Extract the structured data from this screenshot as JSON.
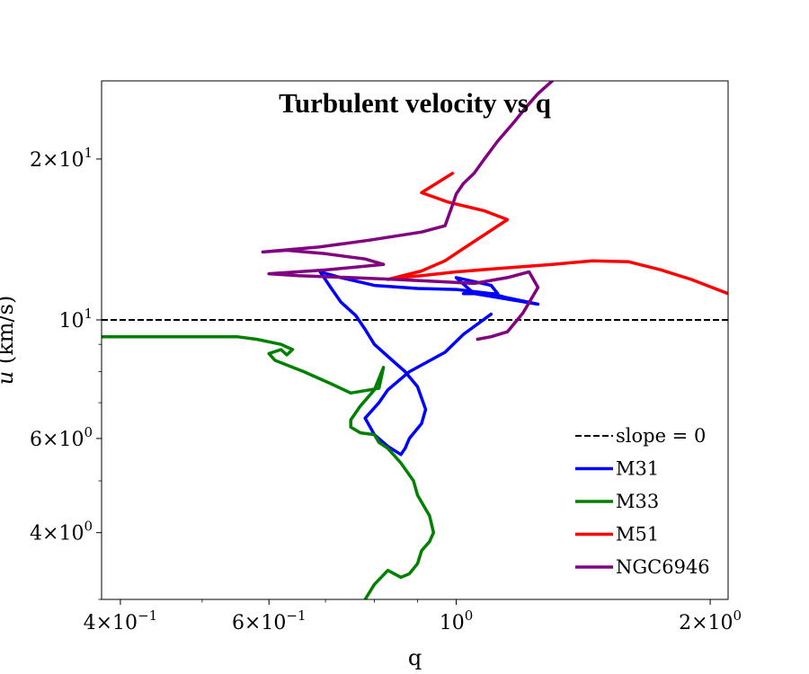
{
  "chart_data": {
    "type": "line",
    "title": "Turbulent velocity vs q",
    "xlabel": "q",
    "ylabel": "u (km/s)",
    "xscale": "log",
    "yscale": "log",
    "xlim": [
      0.38,
      2.1
    ],
    "ylim": [
      3.0,
      28.0
    ],
    "grid": false,
    "legend_position": "lower right",
    "x_ticks": [
      {
        "value": 0.4,
        "mant": "4",
        "exp": "−1"
      },
      {
        "value": 0.6,
        "mant": "6",
        "exp": "−1"
      },
      {
        "value": 1.0,
        "mant": "10",
        "exp": "0"
      },
      {
        "value": 2.0,
        "mant": "2",
        "exp": "0"
      }
    ],
    "y_ticks": [
      {
        "value": 4,
        "mant": "4",
        "exp": "0"
      },
      {
        "value": 6,
        "mant": "6",
        "exp": "0"
      },
      {
        "value": 10,
        "mant": "10",
        "exp": "1"
      },
      {
        "value": 20,
        "mant": "2",
        "exp": "1"
      }
    ],
    "reference_lines": [
      {
        "name": "slope = 0",
        "y": 10,
        "color": "#000000",
        "style": "dashed"
      }
    ],
    "series": [
      {
        "name": "M31",
        "color": "#0000ff",
        "points": [
          [
            1.1,
            10.25
          ],
          [
            1.02,
            9.4
          ],
          [
            0.97,
            8.7
          ],
          [
            0.88,
            8.0
          ],
          [
            0.83,
            7.4
          ],
          [
            0.81,
            7.0
          ],
          [
            0.78,
            6.55
          ],
          [
            0.8,
            6.1
          ],
          [
            0.83,
            5.8
          ],
          [
            0.86,
            5.6
          ],
          [
            0.87,
            5.75
          ],
          [
            0.88,
            6.0
          ],
          [
            0.91,
            6.4
          ],
          [
            0.92,
            6.8
          ],
          [
            0.9,
            7.5
          ],
          [
            0.87,
            8.0
          ],
          [
            0.84,
            8.4
          ],
          [
            0.8,
            9.0
          ],
          [
            0.78,
            9.6
          ],
          [
            0.76,
            10.2
          ],
          [
            0.73,
            10.8
          ],
          [
            0.71,
            11.5
          ],
          [
            0.69,
            12.3
          ],
          [
            0.73,
            12.0
          ],
          [
            0.8,
            11.6
          ],
          [
            0.9,
            11.45
          ],
          [
            1.0,
            11.4
          ],
          [
            1.1,
            11.2
          ],
          [
            1.15,
            11.0
          ],
          [
            1.25,
            10.7
          ],
          [
            1.05,
            11.2
          ],
          [
            1.0,
            12.0
          ],
          [
            1.1,
            11.6
          ],
          [
            1.12,
            11.2
          ],
          [
            1.02,
            11.2
          ]
        ]
      },
      {
        "name": "M33",
        "color": "#008000",
        "points": [
          [
            0.38,
            9.3
          ],
          [
            0.45,
            9.3
          ],
          [
            0.55,
            9.3
          ],
          [
            0.58,
            9.2
          ],
          [
            0.62,
            9.0
          ],
          [
            0.64,
            8.8
          ],
          [
            0.63,
            8.6
          ],
          [
            0.62,
            8.8
          ],
          [
            0.6,
            8.65
          ],
          [
            0.61,
            8.4
          ],
          [
            0.66,
            8.0
          ],
          [
            0.71,
            7.6
          ],
          [
            0.75,
            7.3
          ],
          [
            0.79,
            7.4
          ],
          [
            0.81,
            7.45
          ],
          [
            0.82,
            8.15
          ],
          [
            0.8,
            7.4
          ],
          [
            0.77,
            6.9
          ],
          [
            0.75,
            6.5
          ],
          [
            0.75,
            6.3
          ],
          [
            0.77,
            6.15
          ],
          [
            0.8,
            6.1
          ],
          [
            0.81,
            5.9
          ],
          [
            0.83,
            5.75
          ],
          [
            0.86,
            5.4
          ],
          [
            0.89,
            5.0
          ],
          [
            0.9,
            4.7
          ],
          [
            0.93,
            4.3
          ],
          [
            0.94,
            4.0
          ],
          [
            0.93,
            3.85
          ],
          [
            0.91,
            3.7
          ],
          [
            0.9,
            3.5
          ],
          [
            0.88,
            3.35
          ],
          [
            0.86,
            3.3
          ],
          [
            0.83,
            3.4
          ],
          [
            0.8,
            3.2
          ],
          [
            0.78,
            3.0
          ]
        ]
      },
      {
        "name": "M51",
        "color": "#ff0000",
        "points": [
          [
            0.99,
            18.8
          ],
          [
            0.91,
            17.3
          ],
          [
            0.98,
            16.6
          ],
          [
            1.08,
            16.0
          ],
          [
            1.15,
            15.4
          ],
          [
            1.02,
            13.6
          ],
          [
            0.97,
            12.9
          ],
          [
            0.91,
            12.35
          ],
          [
            0.83,
            11.9
          ],
          [
            0.86,
            12.0
          ],
          [
            0.91,
            12.1
          ],
          [
            1.0,
            12.3
          ],
          [
            1.1,
            12.45
          ],
          [
            1.3,
            12.7
          ],
          [
            1.45,
            12.9
          ],
          [
            1.6,
            12.85
          ],
          [
            1.75,
            12.4
          ],
          [
            1.9,
            11.9
          ],
          [
            2.1,
            11.2
          ]
        ]
      },
      {
        "name": "NGC6946",
        "color": "#800080",
        "points": [
          [
            1.06,
            9.2
          ],
          [
            1.1,
            9.3
          ],
          [
            1.15,
            9.5
          ],
          [
            1.2,
            10.3
          ],
          [
            1.25,
            11.5
          ],
          [
            1.22,
            12.3
          ],
          [
            1.15,
            12.0
          ],
          [
            1.05,
            11.7
          ],
          [
            0.95,
            11.8
          ],
          [
            0.85,
            11.9
          ],
          [
            0.75,
            12.0
          ],
          [
            0.65,
            12.1
          ],
          [
            0.6,
            12.2
          ],
          [
            0.7,
            12.4
          ],
          [
            0.82,
            12.7
          ],
          [
            0.78,
            13.0
          ],
          [
            0.7,
            13.3
          ],
          [
            0.63,
            13.5
          ],
          [
            0.59,
            13.4
          ],
          [
            0.69,
            13.7
          ],
          [
            0.79,
            14.1
          ],
          [
            0.91,
            14.6
          ],
          [
            0.97,
            15.0
          ],
          [
            0.98,
            15.7
          ],
          [
            0.99,
            16.4
          ],
          [
            1.0,
            17.2
          ],
          [
            1.02,
            18.0
          ],
          [
            1.05,
            18.8
          ],
          [
            1.08,
            20.0
          ],
          [
            1.12,
            21.6
          ],
          [
            1.17,
            23.4
          ],
          [
            1.21,
            25.0
          ],
          [
            1.25,
            26.5
          ],
          [
            1.3,
            28.0
          ]
        ]
      }
    ]
  }
}
